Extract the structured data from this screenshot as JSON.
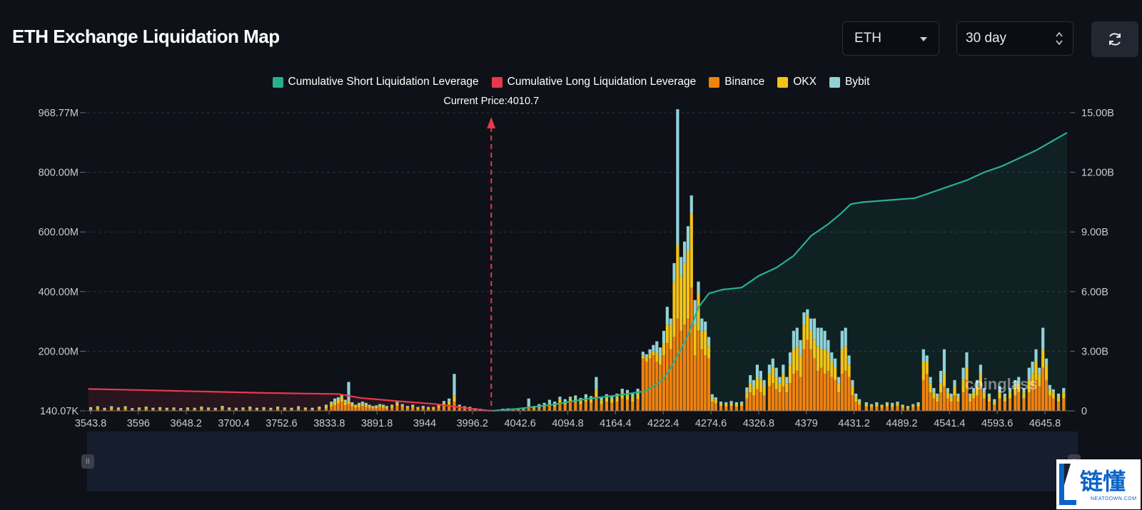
{
  "header": {
    "title": "ETH Exchange Liquidation Map",
    "asset_select": "ETH",
    "range_select": "30 day"
  },
  "watermarks": {
    "chart_brand": "coinglass",
    "corner_brand": "链懂",
    "corner_brand_sub": "NEATDOWN.COM"
  },
  "colors": {
    "background": "#0e1117",
    "short_cumulative": "#26b08f",
    "long_cumulative": "#e8384b",
    "binance": "#f0820f",
    "okx": "#f3c318",
    "bybit": "#8fd3d8"
  },
  "icons": {
    "asset_dropdown": "chevron-down-icon",
    "range_dropdown": "updown-icon",
    "refresh": "refresh-icon"
  },
  "chart_data": {
    "type": "bar",
    "title": "ETH Exchange Liquidation Map",
    "legend": [
      {
        "label": "Cumulative Short Liquidation Leverage",
        "color": "#26b08f"
      },
      {
        "label": "Cumulative Long Liquidation Leverage",
        "color": "#e8384b"
      },
      {
        "label": "Binance",
        "color": "#f0820f"
      },
      {
        "label": "OKX",
        "color": "#f3c318"
      },
      {
        "label": "Bybit",
        "color": "#8fd3d8"
      }
    ],
    "legend_position": "top-center",
    "current_price_label": "Current Price:4010.7",
    "current_price": 4010.7,
    "x_range": [
      3543.8,
      4680
    ],
    "x_ticks": [
      "3543.8",
      "3596",
      "3648.2",
      "3700.4",
      "3752.6",
      "3833.8",
      "3891.8",
      "3944",
      "3996.2",
      "4042.6",
      "4094.8",
      "4164.4",
      "4222.4",
      "4274.6",
      "4326.8",
      "4379",
      "4431.2",
      "4489.2",
      "4541.4",
      "4593.6",
      "4645.8"
    ],
    "y_left_ticks": [
      "140.07K",
      "200.00M",
      "400.00M",
      "600.00M",
      "800.00M",
      "968.77M"
    ],
    "y_left_range": [
      0,
      968.77
    ],
    "y_left_unit": "M",
    "y_right_ticks": [
      "0",
      "3.00B",
      "6.00B",
      "9.00B",
      "12.00B",
      "15.00B"
    ],
    "y_right_range": [
      0,
      15
    ],
    "y_right_unit": "B",
    "grid": true,
    "bars_columns": [
      "price",
      "binance",
      "okx",
      "bybit"
    ],
    "bars": [
      [
        3548,
        5,
        3,
        4
      ],
      [
        3556,
        6,
        4,
        5
      ],
      [
        3564,
        4,
        3,
        3
      ],
      [
        3572,
        7,
        4,
        4
      ],
      [
        3580,
        5,
        3,
        3
      ],
      [
        3588,
        6,
        4,
        5
      ],
      [
        3596,
        4,
        2,
        3
      ],
      [
        3604,
        5,
        3,
        3
      ],
      [
        3612,
        6,
        4,
        4
      ],
      [
        3620,
        4,
        3,
        3
      ],
      [
        3628,
        5,
        3,
        4
      ],
      [
        3636,
        4,
        3,
        3
      ],
      [
        3644,
        5,
        3,
        3
      ],
      [
        3652,
        4,
        2,
        3
      ],
      [
        3660,
        5,
        3,
        3
      ],
      [
        3668,
        4,
        3,
        3
      ],
      [
        3676,
        6,
        4,
        4
      ],
      [
        3684,
        5,
        3,
        3
      ],
      [
        3692,
        4,
        3,
        3
      ],
      [
        3700,
        7,
        4,
        5
      ],
      [
        3708,
        5,
        3,
        3
      ],
      [
        3716,
        4,
        3,
        3
      ],
      [
        3724,
        5,
        3,
        3
      ],
      [
        3732,
        6,
        4,
        4
      ],
      [
        3740,
        4,
        3,
        3
      ],
      [
        3748,
        5,
        3,
        4
      ],
      [
        3756,
        4,
        3,
        3
      ],
      [
        3764,
        6,
        4,
        4
      ],
      [
        3772,
        5,
        3,
        3
      ],
      [
        3780,
        4,
        3,
        3
      ],
      [
        3788,
        6,
        4,
        5
      ],
      [
        3796,
        5,
        3,
        3
      ],
      [
        3804,
        4,
        3,
        3
      ],
      [
        3812,
        6,
        4,
        4
      ],
      [
        3820,
        8,
        6,
        6
      ],
      [
        3826,
        14,
        10,
        6
      ],
      [
        3830,
        18,
        12,
        10
      ],
      [
        3834,
        24,
        12,
        8
      ],
      [
        3838,
        30,
        16,
        6
      ],
      [
        3842,
        18,
        10,
        8
      ],
      [
        3846,
        22,
        12,
        60
      ],
      [
        3850,
        14,
        8,
        6
      ],
      [
        3854,
        10,
        6,
        4
      ],
      [
        3858,
        12,
        8,
        6
      ],
      [
        3862,
        16,
        8,
        6
      ],
      [
        3866,
        12,
        8,
        6
      ],
      [
        3870,
        10,
        6,
        4
      ],
      [
        3874,
        8,
        4,
        4
      ],
      [
        3878,
        8,
        6,
        4
      ],
      [
        3882,
        12,
        6,
        4
      ],
      [
        3886,
        10,
        6,
        4
      ],
      [
        3890,
        8,
        4,
        4
      ],
      [
        3896,
        10,
        6,
        4
      ],
      [
        3902,
        16,
        8,
        6
      ],
      [
        3908,
        12,
        6,
        4
      ],
      [
        3914,
        8,
        4,
        4
      ],
      [
        3920,
        10,
        6,
        4
      ],
      [
        3926,
        6,
        4,
        3
      ],
      [
        3932,
        8,
        4,
        4
      ],
      [
        3938,
        6,
        4,
        3
      ],
      [
        3944,
        6,
        4,
        3
      ],
      [
        3950,
        10,
        6,
        4
      ],
      [
        3956,
        16,
        10,
        6
      ],
      [
        3962,
        20,
        12,
        8
      ],
      [
        3968,
        30,
        20,
        70
      ],
      [
        3974,
        10,
        6,
        4
      ],
      [
        3980,
        8,
        4,
        3
      ],
      [
        3986,
        6,
        4,
        3
      ],
      [
        3992,
        4,
        3,
        2
      ],
      [
        3998,
        3,
        2,
        2
      ],
      [
        4004,
        2,
        1,
        1
      ],
      [
        4018,
        2,
        1,
        1
      ],
      [
        4024,
        3,
        2,
        2
      ],
      [
        4030,
        4,
        2,
        2
      ],
      [
        4036,
        3,
        2,
        2
      ],
      [
        4042,
        4,
        3,
        2
      ],
      [
        4048,
        5,
        3,
        3
      ],
      [
        4054,
        10,
        6,
        24
      ],
      [
        4060,
        8,
        4,
        4
      ],
      [
        4066,
        10,
        6,
        6
      ],
      [
        4072,
        12,
        8,
        6
      ],
      [
        4078,
        16,
        10,
        10
      ],
      [
        4084,
        14,
        8,
        8
      ],
      [
        4090,
        24,
        14,
        8
      ],
      [
        4096,
        20,
        10,
        8
      ],
      [
        4102,
        30,
        10,
        6
      ],
      [
        4108,
        28,
        12,
        10
      ],
      [
        4114,
        22,
        12,
        8
      ],
      [
        4120,
        30,
        14,
        10
      ],
      [
        4126,
        26,
        12,
        10
      ],
      [
        4132,
        40,
        30,
        40
      ],
      [
        4138,
        22,
        12,
        10
      ],
      [
        4144,
        30,
        14,
        10
      ],
      [
        4150,
        26,
        14,
        8
      ],
      [
        4156,
        30,
        16,
        10
      ],
      [
        4162,
        40,
        20,
        12
      ],
      [
        4168,
        36,
        18,
        14
      ],
      [
        4174,
        30,
        16,
        12
      ],
      [
        4180,
        38,
        20,
        14
      ],
      [
        4186,
        170,
        10,
        12
      ],
      [
        4190,
        160,
        14,
        10
      ],
      [
        4194,
        170,
        16,
        14
      ],
      [
        4198,
        180,
        14,
        20
      ],
      [
        4202,
        160,
        30,
        36
      ],
      [
        4206,
        150,
        26,
        30
      ],
      [
        4210,
        180,
        40,
        40
      ],
      [
        4214,
        220,
        60,
        58
      ],
      [
        4218,
        200,
        80,
        20
      ],
      [
        4222,
        240,
        180,
        60
      ],
      [
        4226,
        300,
        240,
        440
      ],
      [
        4230,
        260,
        180,
        60
      ],
      [
        4234,
        280,
        200,
        70
      ],
      [
        4238,
        300,
        220,
        80
      ],
      [
        4242,
        400,
        240,
        60
      ],
      [
        4246,
        180,
        100,
        80
      ],
      [
        4250,
        260,
        120,
        40
      ],
      [
        4254,
        200,
        60,
        40
      ],
      [
        4258,
        180,
        80,
        30
      ],
      [
        4262,
        170,
        40,
        30
      ],
      [
        4266,
        30,
        14,
        10
      ],
      [
        4270,
        24,
        12,
        8
      ],
      [
        4276,
        16,
        8,
        6
      ],
      [
        4282,
        14,
        8,
        6
      ],
      [
        4288,
        16,
        10,
        6
      ],
      [
        4294,
        14,
        8,
        6
      ],
      [
        4300,
        16,
        8,
        6
      ],
      [
        4306,
        40,
        20,
        16
      ],
      [
        4310,
        60,
        30,
        26
      ],
      [
        4314,
        50,
        30,
        20
      ],
      [
        4318,
        70,
        40,
        40
      ],
      [
        4322,
        60,
        40,
        30
      ],
      [
        4326,
        50,
        30,
        20
      ],
      [
        4332,
        80,
        40,
        30
      ],
      [
        4336,
        90,
        50,
        30
      ],
      [
        4340,
        70,
        40,
        30
      ],
      [
        4344,
        60,
        30,
        20
      ],
      [
        4348,
        80,
        40,
        30
      ],
      [
        4352,
        60,
        30,
        20
      ],
      [
        4356,
        90,
        60,
        40
      ],
      [
        4360,
        120,
        80,
        60
      ],
      [
        4364,
        130,
        80,
        60
      ],
      [
        4368,
        110,
        70,
        50
      ],
      [
        4372,
        200,
        80,
        40
      ],
      [
        4376,
        230,
        80,
        20
      ],
      [
        4380,
        200,
        60,
        40
      ],
      [
        4384,
        170,
        60,
        70
      ],
      [
        4388,
        130,
        80,
        60
      ],
      [
        4392,
        140,
        60,
        70
      ],
      [
        4396,
        120,
        80,
        60
      ],
      [
        4400,
        130,
        60,
        40
      ],
      [
        4404,
        110,
        50,
        30
      ],
      [
        4408,
        100,
        40,
        30
      ],
      [
        4412,
        60,
        30,
        20
      ],
      [
        4416,
        120,
        80,
        60
      ],
      [
        4420,
        130,
        80,
        60
      ],
      [
        4424,
        110,
        40,
        30
      ],
      [
        4428,
        50,
        30,
        20
      ],
      [
        4432,
        30,
        16,
        10
      ],
      [
        4436,
        20,
        10,
        8
      ],
      [
        4444,
        14,
        8,
        6
      ],
      [
        4450,
        12,
        6,
        4
      ],
      [
        4456,
        14,
        8,
        6
      ],
      [
        4462,
        10,
        6,
        4
      ],
      [
        4468,
        14,
        8,
        6
      ],
      [
        4474,
        12,
        8,
        6
      ],
      [
        4480,
        16,
        8,
        6
      ],
      [
        4486,
        10,
        6,
        4
      ],
      [
        4492,
        8,
        4,
        4
      ],
      [
        4498,
        12,
        6,
        4
      ],
      [
        4504,
        14,
        8,
        6
      ],
      [
        4510,
        100,
        60,
        40
      ],
      [
        4514,
        120,
        40,
        20
      ],
      [
        4518,
        60,
        30,
        20
      ],
      [
        4522,
        40,
        20,
        14
      ],
      [
        4526,
        30,
        16,
        10
      ],
      [
        4530,
        60,
        30,
        40
      ],
      [
        4534,
        80,
        40,
        80
      ],
      [
        4538,
        40,
        20,
        14
      ],
      [
        4542,
        30,
        16,
        10
      ],
      [
        4546,
        50,
        30,
        20
      ],
      [
        4550,
        30,
        16,
        10
      ],
      [
        4556,
        60,
        40,
        40
      ],
      [
        4560,
        100,
        40,
        50
      ],
      [
        4564,
        30,
        16,
        10
      ],
      [
        4568,
        40,
        20,
        14
      ],
      [
        4572,
        50,
        30,
        20
      ],
      [
        4576,
        80,
        40,
        30
      ],
      [
        4580,
        40,
        20,
        14
      ],
      [
        4586,
        30,
        16,
        10
      ],
      [
        4592,
        20,
        10,
        8
      ],
      [
        4598,
        40,
        20,
        20
      ],
      [
        4604,
        30,
        16,
        10
      ],
      [
        4610,
        40,
        20,
        14
      ],
      [
        4616,
        50,
        30,
        20
      ],
      [
        4620,
        60,
        30,
        20
      ],
      [
        4626,
        40,
        20,
        14
      ],
      [
        4632,
        60,
        40,
        40
      ],
      [
        4636,
        80,
        40,
        40
      ],
      [
        4640,
        100,
        60,
        40
      ],
      [
        4644,
        80,
        40,
        20
      ],
      [
        4648,
        140,
        60,
        70
      ],
      [
        4652,
        100,
        50,
        20
      ],
      [
        4656,
        50,
        20,
        14
      ],
      [
        4660,
        40,
        20,
        10
      ],
      [
        4666,
        30,
        16,
        10
      ],
      [
        4672,
        40,
        20,
        14
      ]
    ],
    "series": [
      {
        "name": "Cumulative Short Liquidation Leverage",
        "axis": "right",
        "points": [
          [
            4012,
            0
          ],
          [
            4040,
            0.1
          ],
          [
            4080,
            0.3
          ],
          [
            4120,
            0.6
          ],
          [
            4160,
            0.8
          ],
          [
            4190,
            1.0
          ],
          [
            4210,
            1.6
          ],
          [
            4225,
            2.7
          ],
          [
            4238,
            3.8
          ],
          [
            4250,
            5.2
          ],
          [
            4262,
            5.9
          ],
          [
            4278,
            6.1
          ],
          [
            4300,
            6.2
          ],
          [
            4320,
            6.8
          ],
          [
            4340,
            7.2
          ],
          [
            4360,
            7.8
          ],
          [
            4380,
            8.8
          ],
          [
            4400,
            9.4
          ],
          [
            4414,
            9.9
          ],
          [
            4426,
            10.4
          ],
          [
            4440,
            10.5
          ],
          [
            4470,
            10.6
          ],
          [
            4500,
            10.7
          ],
          [
            4520,
            11.0
          ],
          [
            4540,
            11.3
          ],
          [
            4560,
            11.6
          ],
          [
            4580,
            12.0
          ],
          [
            4600,
            12.3
          ],
          [
            4620,
            12.7
          ],
          [
            4640,
            13.1
          ],
          [
            4660,
            13.6
          ],
          [
            4676,
            14.0
          ]
        ]
      },
      {
        "name": "Cumulative Long Liquidation Leverage",
        "axis": "right",
        "points": [
          [
            3545,
            1.1
          ],
          [
            3600,
            1.05
          ],
          [
            3650,
            1.0
          ],
          [
            3700,
            0.95
          ],
          [
            3750,
            0.9
          ],
          [
            3800,
            0.87
          ],
          [
            3834,
            0.85
          ],
          [
            3860,
            0.65
          ],
          [
            3900,
            0.5
          ],
          [
            3944,
            0.35
          ],
          [
            3980,
            0.15
          ],
          [
            4010,
            0
          ]
        ]
      }
    ]
  }
}
